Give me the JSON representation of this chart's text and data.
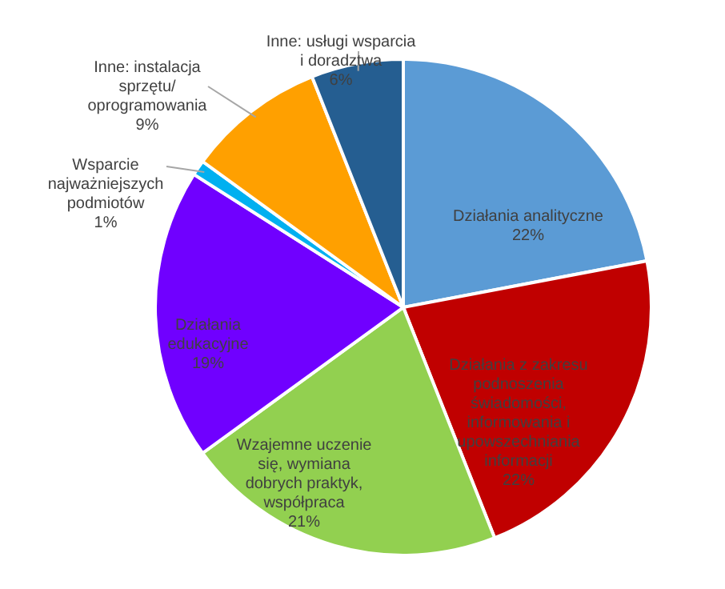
{
  "chart_data": {
    "type": "pie",
    "categories": [
      "Działania analityczne",
      "Działania z zakresu podnoszenia świadomości, informowania i upowszechniania informacji",
      "Wzajemne uczenie się, wymiana dobrych praktyk, współpraca",
      "Działania edukacyjne",
      "Wsparcie najważniejszych podmiotów",
      "Inne: instalacja sprzętu/ oprogramowania",
      "Inne: usługi wsparcia i doradztwa"
    ],
    "values": [
      22,
      22,
      21,
      19,
      1,
      9,
      6
    ],
    "colors": [
      "#5b9bd5",
      "#c00000",
      "#92d050",
      "#7000ff",
      "#00b0f0",
      "#ffa000",
      "#255e91"
    ],
    "value_labels": [
      "22%",
      "22%",
      "21%",
      "19%",
      "1%",
      "9%",
      "6%"
    ]
  }
}
